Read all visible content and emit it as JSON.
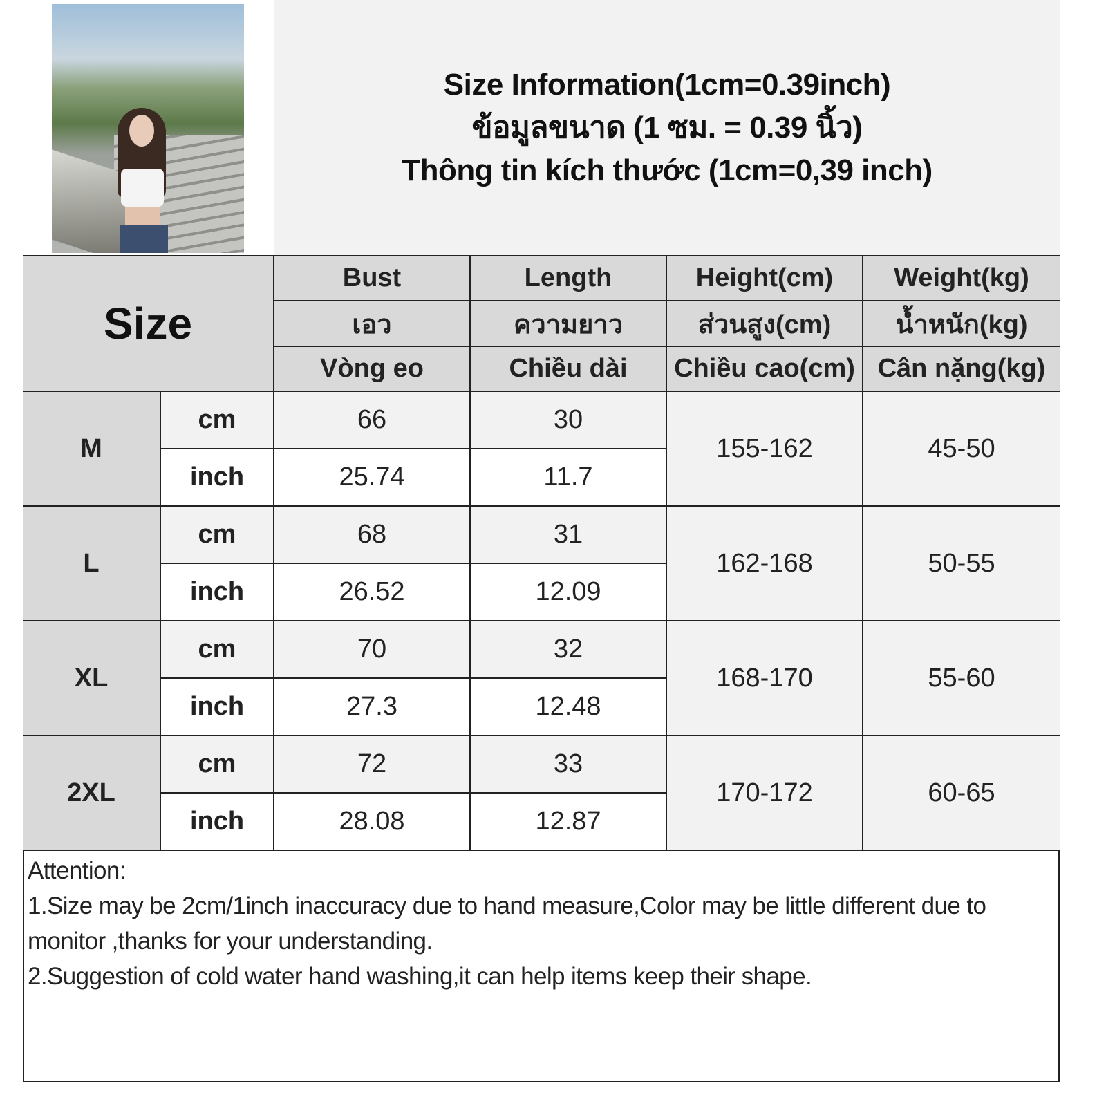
{
  "title": {
    "line_en": "Size Information(1cm=0.39inch)",
    "line_th": "ข้อมูลขนาด (1 ซม. = 0.39 นิ้ว)",
    "line_vi": "Thông tin kích thước (1cm=0,39 inch)"
  },
  "photo": {
    "description_icon": "model-photo"
  },
  "table": {
    "size_header": "Size",
    "columns": [
      {
        "en": "Bust",
        "th": "เอว",
        "vi": "Vòng eo"
      },
      {
        "en": "Length",
        "th": "ความยาว",
        "vi": "Chiều dài"
      },
      {
        "en": "Height(cm)",
        "th": "ส่วนสูง(cm)",
        "vi": "Chiều cao(cm)"
      },
      {
        "en": "Weight(kg)",
        "th": "น้ำหนัก(kg)",
        "vi": "Cân nặng(kg)"
      }
    ],
    "unit_cm": "cm",
    "unit_inch": "inch",
    "rows": [
      {
        "size": "M",
        "bust_cm": "66",
        "length_cm": "30",
        "bust_inch": "25.74",
        "length_inch": "11.7",
        "height": "155-162",
        "weight": "45-50"
      },
      {
        "size": "L",
        "bust_cm": "68",
        "length_cm": "31",
        "bust_inch": "26.52",
        "length_inch": "12.09",
        "height": "162-168",
        "weight": "50-55"
      },
      {
        "size": "XL",
        "bust_cm": "70",
        "length_cm": "32",
        "bust_inch": "27.3",
        "length_inch": "12.48",
        "height": "168-170",
        "weight": "55-60"
      },
      {
        "size": "2XL",
        "bust_cm": "72",
        "length_cm": "33",
        "bust_inch": "28.08",
        "length_inch": "12.87",
        "height": "170-172",
        "weight": "60-65"
      }
    ]
  },
  "notes": {
    "heading": "Attention:",
    "items": [
      "1.Size may be 2cm/1inch inaccuracy due to hand measure,Color may be little different due to monitor ,thanks for your understanding.",
      "2.Suggestion of cold water hand washing,it can help items keep their shape."
    ]
  }
}
